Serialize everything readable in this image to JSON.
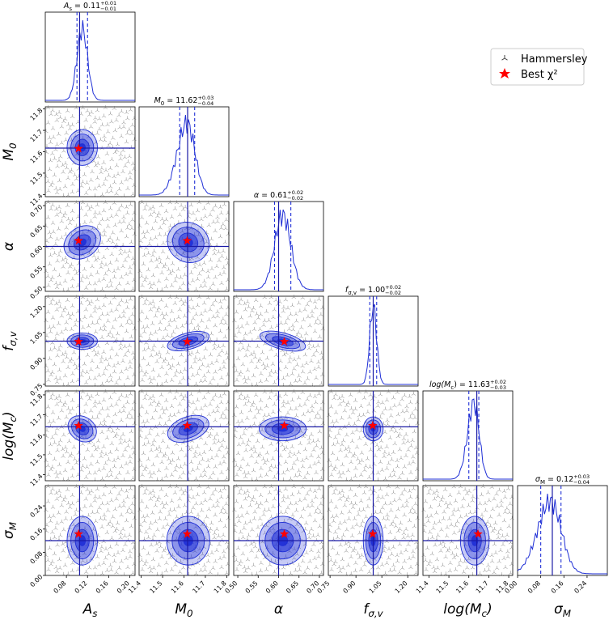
{
  "legend": {
    "items": [
      {
        "label": "Hammersley",
        "marker": "tri-down",
        "color": "#555555"
      },
      {
        "label": "Best χ²",
        "marker": "star",
        "color": "#ff0000"
      }
    ]
  },
  "colors": {
    "contour": "#1f2fd6",
    "truth": "#1a1aa6",
    "best": "#ff0000",
    "sample": "#666666"
  },
  "chart_data": {
    "type": "corner",
    "parameters": [
      {
        "key": "As",
        "label": "A_s",
        "title": "A_s = 0.11 +0.01 −0.01",
        "median": 0.11,
        "lo": 0.1,
        "hi": 0.12,
        "range": [
          0.04,
          0.21
        ],
        "ticks": [
          "0.08",
          "0.12",
          "0.16",
          "0.20"
        ],
        "tick_values": [
          0.08,
          0.12,
          0.16,
          0.2
        ],
        "best": 0.103,
        "truth": 0.105
      },
      {
        "key": "M0",
        "label": "M_0",
        "title": "M_0 = 11.62 +0.03 −0.04",
        "median": 11.62,
        "lo": 11.58,
        "hi": 11.65,
        "range": [
          11.39,
          11.81
        ],
        "ticks": [
          "11.4",
          "11.5",
          "11.6",
          "11.7",
          "11.8"
        ],
        "tick_values": [
          11.4,
          11.5,
          11.6,
          11.7,
          11.8
        ],
        "best": 11.615,
        "truth": 11.617
      },
      {
        "key": "alpha",
        "label": "α",
        "title": "α = 0.61 +0.02 −0.02",
        "median": 0.61,
        "lo": 0.59,
        "hi": 0.63,
        "range": [
          0.49,
          0.71
        ],
        "ticks": [
          "0.50",
          "0.55",
          "0.60",
          "0.65",
          "0.70"
        ],
        "tick_values": [
          0.5,
          0.55,
          0.6,
          0.65,
          0.7
        ],
        "best": 0.614,
        "truth": 0.6
      },
      {
        "key": "fsv",
        "label": "f_σ,v",
        "title": "f_σ,v = 1.00 +0.02 −0.02",
        "median": 1.0,
        "lo": 0.98,
        "hi": 1.02,
        "range": [
          0.74,
          1.26
        ],
        "ticks": [
          "0.75",
          "0.90",
          "1.05",
          "1.20"
        ],
        "tick_values": [
          0.75,
          0.9,
          1.05,
          1.2
        ],
        "best": 0.997,
        "truth": 1.0
      },
      {
        "key": "logMc",
        "label": "log(M_c)",
        "title": "log(M_c) = 11.63 +0.02 −0.03",
        "median": 11.63,
        "lo": 11.6,
        "hi": 11.65,
        "range": [
          11.37,
          11.82
        ],
        "ticks": [
          "11.4",
          "11.5",
          "11.6",
          "11.7",
          "11.8"
        ],
        "tick_values": [
          11.4,
          11.5,
          11.6,
          11.7,
          11.8
        ],
        "best": 11.646,
        "truth": 11.64
      },
      {
        "key": "sigmaM",
        "label": "σ_M",
        "title": "σ_M = 0.12 +0.03 −0.04",
        "median": 0.12,
        "lo": 0.08,
        "hi": 0.15,
        "range": [
          0.0,
          0.31
        ],
        "ticks": [
          "0.00",
          "0.08",
          "0.16",
          "0.24"
        ],
        "tick_values": [
          0.0,
          0.08,
          0.16,
          0.24
        ],
        "best": 0.143,
        "truth": 0.12
      }
    ],
    "axis_labels": {
      "As": {
        "main": "A",
        "sub": "s"
      },
      "M0": {
        "main": "M",
        "sub": "0"
      },
      "alpha": {
        "main": "α",
        "sub": ""
      },
      "fsv": {
        "main": "f",
        "sub": "σ,v"
      },
      "logMc": {
        "main": "log(M",
        "sub": "c",
        "tail": ")"
      },
      "sigmaM": {
        "main": "σ",
        "sub": "M"
      }
    },
    "titles": {
      "As": {
        "lhs": "A",
        "sub": "s",
        "val": " = 0.11",
        "up": "+0.01",
        "dn": "−0.01"
      },
      "M0": {
        "lhs": "M",
        "sub": "0",
        "val": " = 11.62",
        "up": "+0.03",
        "dn": "−0.04"
      },
      "alpha": {
        "lhs": "α",
        "sub": "",
        "val": " = 0.61",
        "up": "+0.02",
        "dn": "−0.02"
      },
      "fsv": {
        "lhs": "f",
        "sub": "σ,v",
        "val": " = 1.00",
        "up": "+0.02",
        "dn": "−0.02"
      },
      "logMc": {
        "lhs": "log(M",
        "sub": "c",
        "tail": ")",
        "val": " = 11.63",
        "up": "+0.02",
        "dn": "−0.03"
      },
      "sigmaM": {
        "lhs": "σ",
        "sub": "M",
        "val": " = 0.12",
        "up": "+0.03",
        "dn": "−0.04"
      }
    }
  }
}
